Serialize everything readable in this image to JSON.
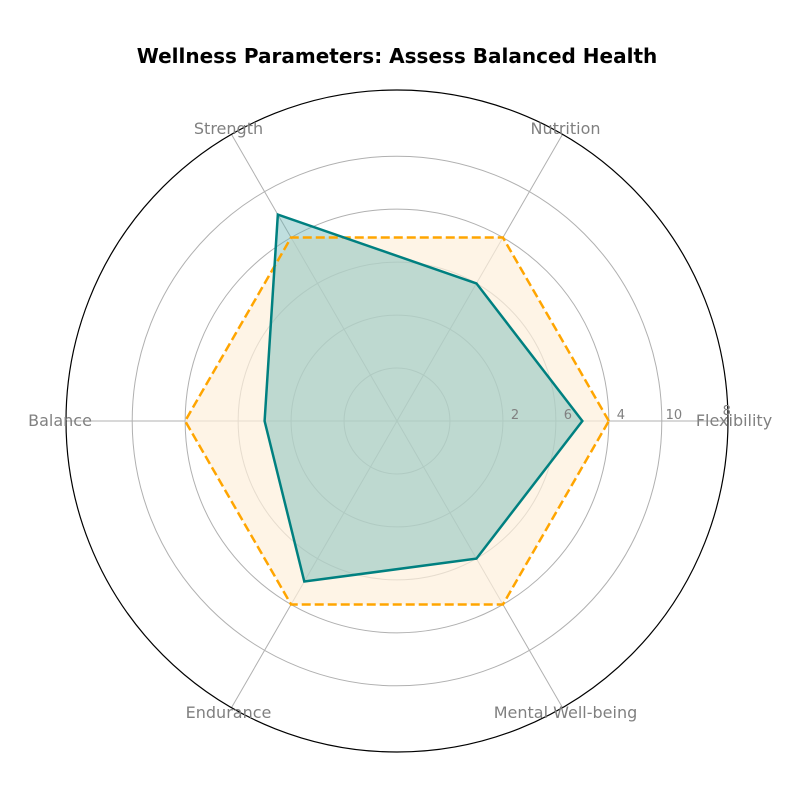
{
  "chart_data": {
    "type": "radar",
    "title": "Wellness Parameters: Assess Balanced Health",
    "categories": [
      "Flexibility",
      "Nutrition",
      "Strength",
      "Balance",
      "Endurance",
      "Mental Well-being"
    ],
    "radial_tick_labels": [
      "2",
      "6",
      "4",
      "10",
      "8"
    ],
    "rmax": 10,
    "grid": true,
    "series": [
      {
        "values": [
          7,
          6,
          9,
          5,
          7,
          6
        ],
        "color": "#008080",
        "fill": "#66b2b2",
        "line_style": "solid"
      },
      {
        "values": [
          8,
          8,
          8,
          8,
          8,
          8
        ],
        "color": "#FFA500",
        "fill": "#fdf0dc",
        "line_style": "dashed"
      }
    ]
  }
}
